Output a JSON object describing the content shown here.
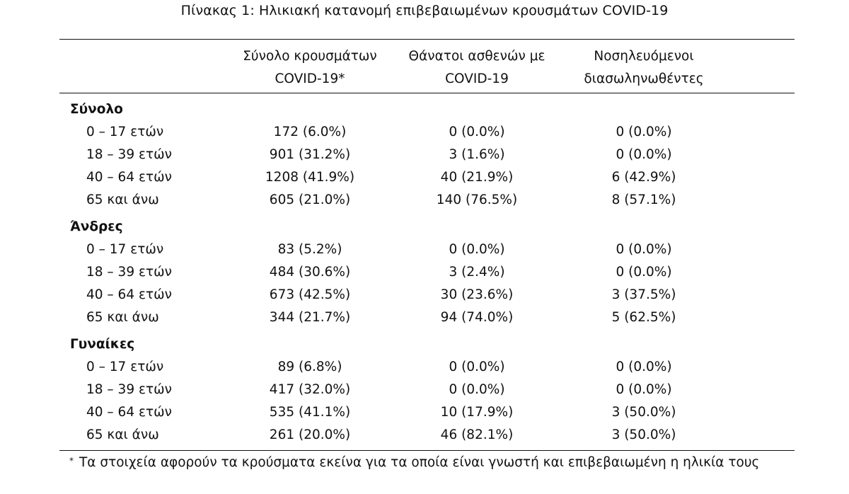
{
  "caption": "Πίνακας 1: Ηλικιακή κατανομή επιβεβαιωμένων κρουσμάτων COVID-19",
  "columns": [
    {
      "line1": "Σύνολο κρουσμάτων",
      "line2": "COVID-19*"
    },
    {
      "line1": "Θάνατοι ασθενών με",
      "line2": "COVID-19"
    },
    {
      "line1": "Νοσηλευόμενοι",
      "line2": "διασωληνωθέντες"
    }
  ],
  "groups": [
    {
      "label": "Σύνολο",
      "rows": [
        {
          "age": "0 – 17 ετών",
          "cases": "172 (6.0%)",
          "deaths": "0 (0.0%)",
          "intubated": "0 (0.0%)"
        },
        {
          "age": "18 – 39 ετών",
          "cases": "901 (31.2%)",
          "deaths": "3 (1.6%)",
          "intubated": "0 (0.0%)"
        },
        {
          "age": "40 – 64 ετών",
          "cases": "1208 (41.9%)",
          "deaths": "40 (21.9%)",
          "intubated": "6 (42.9%)"
        },
        {
          "age": "65 και άνω",
          "cases": "605 (21.0%)",
          "deaths": "140 (76.5%)",
          "intubated": "8 (57.1%)"
        }
      ]
    },
    {
      "label": "Άνδρες",
      "rows": [
        {
          "age": "0 – 17 ετών",
          "cases": "83 (5.2%)",
          "deaths": "0 (0.0%)",
          "intubated": "0 (0.0%)"
        },
        {
          "age": "18 – 39 ετών",
          "cases": "484 (30.6%)",
          "deaths": "3 (2.4%)",
          "intubated": "0 (0.0%)"
        },
        {
          "age": "40 – 64 ετών",
          "cases": "673 (42.5%)",
          "deaths": "30 (23.6%)",
          "intubated": "3 (37.5%)"
        },
        {
          "age": "65 και άνω",
          "cases": "344 (21.7%)",
          "deaths": "94 (74.0%)",
          "intubated": "5 (62.5%)"
        }
      ]
    },
    {
      "label": "Γυναίκες",
      "rows": [
        {
          "age": "0 – 17 ετών",
          "cases": "89 (6.8%)",
          "deaths": "0 (0.0%)",
          "intubated": "0 (0.0%)"
        },
        {
          "age": "18 – 39 ετών",
          "cases": "417 (32.0%)",
          "deaths": "0 (0.0%)",
          "intubated": "0 (0.0%)"
        },
        {
          "age": "40 – 64 ετών",
          "cases": "535 (41.1%)",
          "deaths": "10 (17.9%)",
          "intubated": "3 (50.0%)"
        },
        {
          "age": "65 και άνω",
          "cases": "261 (20.0%)",
          "deaths": "46 (82.1%)",
          "intubated": "3 (50.0%)"
        }
      ]
    }
  ],
  "footnote": {
    "mark": "*",
    "text": "Τα στοιχεία αφορούν τα κρούσματα εκείνα για τα οποία είναι γνωστή και επιβεβαιωμένη η ηλικία τους"
  }
}
